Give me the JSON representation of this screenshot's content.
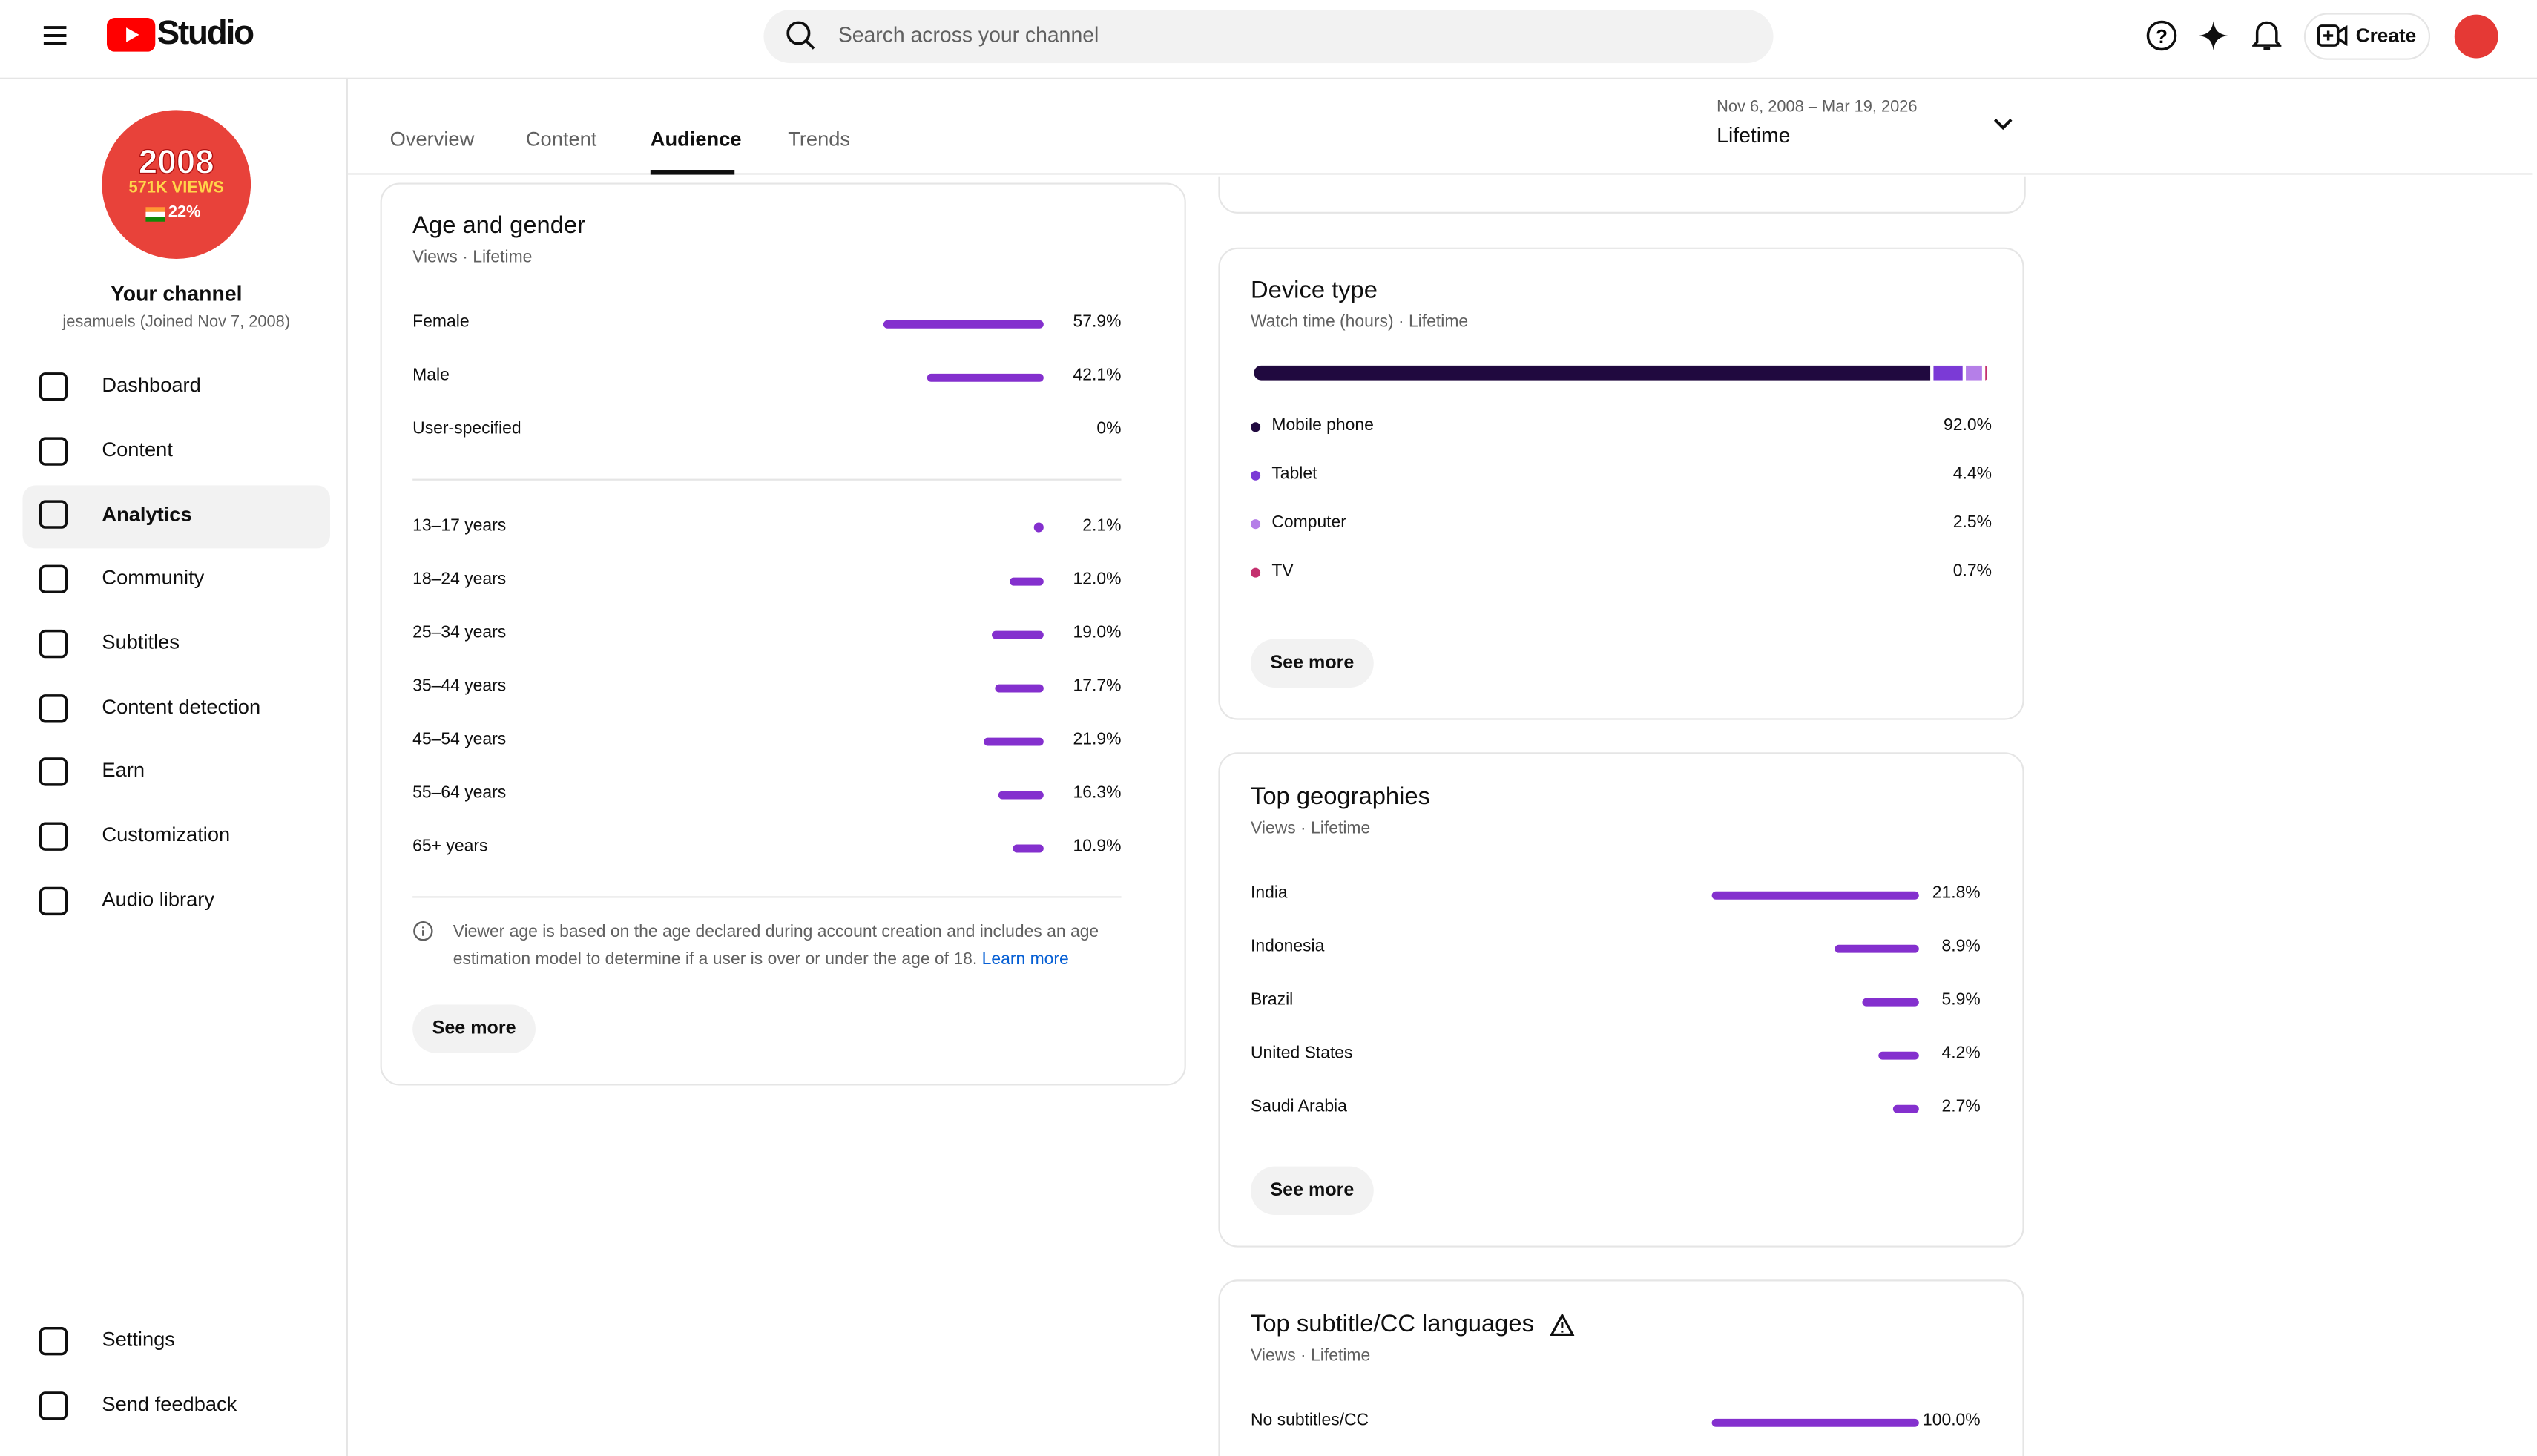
{
  "header": {
    "logo": "Studio",
    "search_placeholder": "Search across your channel",
    "create": "Create"
  },
  "sidebar": {
    "avatar": {
      "year": "2008",
      "views": "571K VIEWS",
      "share": "22%"
    },
    "channel_title": "Your channel",
    "channel_sub": "jesamuels (Joined Nov 7, 2008)",
    "nav": [
      "Dashboard",
      "Content",
      "Analytics",
      "Community",
      "Subtitles",
      "Content detection",
      "Earn",
      "Customization",
      "Audio library"
    ],
    "footer_nav": [
      "Settings",
      "Send feedback"
    ]
  },
  "tabs": [
    "Overview",
    "Content",
    "Audience",
    "Trends"
  ],
  "date_range": {
    "range": "Nov 6, 2008 – Mar 19, 2026",
    "label": "Lifetime"
  },
  "age_gender": {
    "title": "Age and gender",
    "subtitle": "Views · Lifetime",
    "gender": [
      {
        "label": "Female",
        "value": 57.9,
        "value_label": "57.9%"
      },
      {
        "label": "Male",
        "value": 42.1,
        "value_label": "42.1%"
      },
      {
        "label": "User-specified",
        "value": 0,
        "value_label": "0%"
      }
    ],
    "ages": [
      {
        "label": "13–17 years",
        "value": 2.1,
        "value_label": "2.1%"
      },
      {
        "label": "18–24 years",
        "value": 12.0,
        "value_label": "12.0%"
      },
      {
        "label": "25–34 years",
        "value": 19.0,
        "value_label": "19.0%"
      },
      {
        "label": "35–44 years",
        "value": 17.7,
        "value_label": "17.7%"
      },
      {
        "label": "45–54 years",
        "value": 21.9,
        "value_label": "21.9%"
      },
      {
        "label": "55–64 years",
        "value": 16.3,
        "value_label": "16.3%"
      },
      {
        "label": "65+ years",
        "value": 10.9,
        "value_label": "10.9%"
      }
    ],
    "note": "Viewer age is based on the age declared during account creation and includes an age estimation model to determine if a user is over or under the age of 18.",
    "note_link": "Learn more",
    "button": "See more"
  },
  "device_type": {
    "title": "Device type",
    "subtitle": "Watch time (hours) · Lifetime",
    "rows": [
      {
        "label": "Mobile phone",
        "value": 92.0,
        "value_label": "92.0%",
        "color": "#20093f"
      },
      {
        "label": "Tablet",
        "value": 4.4,
        "value_label": "4.4%",
        "color": "#7b3ad6"
      },
      {
        "label": "Computer",
        "value": 2.5,
        "value_label": "2.5%",
        "color": "#b57fe8"
      },
      {
        "label": "TV",
        "value": 0.7,
        "value_label": "0.7%",
        "color": "#c4306e"
      }
    ],
    "button": "See more"
  },
  "top_geographies": {
    "title": "Top geographies",
    "subtitle": "Views · Lifetime",
    "rows": [
      {
        "label": "India",
        "value": 21.8,
        "value_label": "21.8%"
      },
      {
        "label": "Indonesia",
        "value": 8.9,
        "value_label": "8.9%"
      },
      {
        "label": "Brazil",
        "value": 5.9,
        "value_label": "5.9%"
      },
      {
        "label": "United States",
        "value": 4.2,
        "value_label": "4.2%"
      },
      {
        "label": "Saudi Arabia",
        "value": 2.7,
        "value_label": "2.7%"
      }
    ],
    "button": "See more"
  },
  "subtitle_languages": {
    "title": "Top subtitle/CC languages",
    "subtitle": "Views · Lifetime",
    "rows": [
      {
        "label": "No subtitles/CC",
        "value": 100.0,
        "value_label": "100.0%"
      }
    ]
  }
}
